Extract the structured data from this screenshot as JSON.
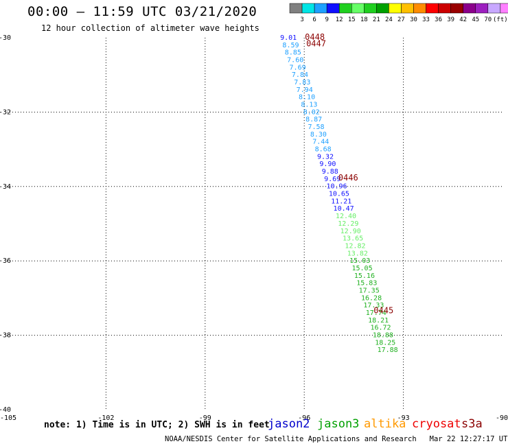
{
  "title": "00:00 – 11:59 UTC 03/21/2020",
  "subtitle": "12 hour collection of altimeter wave heights",
  "colorbar": {
    "colors": [
      "#808080",
      "#00e5e5",
      "#1ea0ff",
      "#1010ff",
      "#1fd01f",
      "#66ff66",
      "#1fd01f",
      "#00a000",
      "#ffff00",
      "#ffc000",
      "#ff8c00",
      "#ff0000",
      "#cc0000",
      "#990000",
      "#8b008b",
      "#9c1fbf",
      "#c8a8ff",
      "#ff80ff",
      "#000000"
    ],
    "labels": [
      "3",
      "6",
      "9",
      "12",
      "15",
      "18",
      "21",
      "24",
      "27",
      "30",
      "33",
      "36",
      "39",
      "42",
      "45",
      "70",
      "(ft)"
    ]
  },
  "note": "note: 1) Time is in UTC; 2) SWH is in feet",
  "satellites": [
    {
      "name": "jason2",
      "color": "#0000cc"
    },
    {
      "name": "jason3",
      "color": "#00a000"
    },
    {
      "name": "altika",
      "color": "#ff9900"
    },
    {
      "name": "cryosat",
      "color": "#ee0000"
    },
    {
      "name": "s3a",
      "color": "#8b0000"
    }
  ],
  "credit": "NOAA/NESDIS Center for Satellite Applications and Research",
  "timestamp": "Mar 22 12:27:17 UTC 2020",
  "chart_data": {
    "type": "scatter",
    "title": "00:00 – 11:59 UTC 03/21/2020",
    "subtitle": "12 hour collection of altimeter wave heights",
    "xlim": [
      -105,
      -90
    ],
    "ylim": [
      -40,
      -30
    ],
    "x_ticks": [
      "-105",
      "-102",
      "-99",
      "-96",
      "-93",
      "-90"
    ],
    "y_ticks": [
      "-30",
      "-32",
      "-34",
      "-36",
      "-38",
      "-40"
    ],
    "grid": true,
    "time_labels": [
      {
        "label": "0448",
        "lon": -95.98,
        "lat": -29.98
      },
      {
        "label": "0447",
        "lon": -95.94,
        "lat": -30.16
      },
      {
        "label": "0446",
        "lon": -94.97,
        "lat": -33.76
      },
      {
        "label": "0445",
        "lon": -93.9,
        "lat": -37.33
      }
    ],
    "points": [
      {
        "lon": -96.73,
        "lat": -29.98,
        "swh": "9.01"
      },
      {
        "lon": -96.66,
        "lat": -30.18,
        "swh": "8.59"
      },
      {
        "lon": -96.59,
        "lat": -30.38,
        "swh": "8.85"
      },
      {
        "lon": -96.52,
        "lat": -30.58,
        "swh": "7.60"
      },
      {
        "lon": -96.45,
        "lat": -30.78,
        "swh": "7.69"
      },
      {
        "lon": -96.38,
        "lat": -30.98,
        "swh": "7.84"
      },
      {
        "lon": -96.31,
        "lat": -31.18,
        "swh": "7.83"
      },
      {
        "lon": -96.24,
        "lat": -31.38,
        "swh": "7.94"
      },
      {
        "lon": -96.17,
        "lat": -31.58,
        "swh": "8.10"
      },
      {
        "lon": -96.1,
        "lat": -31.78,
        "swh": "8.13"
      },
      {
        "lon": -96.03,
        "lat": -31.98,
        "swh": "8.02"
      },
      {
        "lon": -95.96,
        "lat": -32.18,
        "swh": "8.87"
      },
      {
        "lon": -95.89,
        "lat": -32.38,
        "swh": "7.58"
      },
      {
        "lon": -95.82,
        "lat": -32.58,
        "swh": "8.30"
      },
      {
        "lon": -95.75,
        "lat": -32.78,
        "swh": "7.44"
      },
      {
        "lon": -95.68,
        "lat": -32.98,
        "swh": "8.68"
      },
      {
        "lon": -95.61,
        "lat": -33.18,
        "swh": "9.32"
      },
      {
        "lon": -95.54,
        "lat": -33.38,
        "swh": "9.90"
      },
      {
        "lon": -95.47,
        "lat": -33.58,
        "swh": "9.88"
      },
      {
        "lon": -95.4,
        "lat": -33.78,
        "swh": "9.69"
      },
      {
        "lon": -95.33,
        "lat": -33.98,
        "swh": "10.96"
      },
      {
        "lon": -95.26,
        "lat": -34.18,
        "swh": "10.65"
      },
      {
        "lon": -95.19,
        "lat": -34.38,
        "swh": "11.21"
      },
      {
        "lon": -95.12,
        "lat": -34.58,
        "swh": "10.47"
      },
      {
        "lon": -95.05,
        "lat": -34.78,
        "swh": "12.40"
      },
      {
        "lon": -94.98,
        "lat": -34.98,
        "swh": "12.29"
      },
      {
        "lon": -94.91,
        "lat": -35.18,
        "swh": "12.90"
      },
      {
        "lon": -94.84,
        "lat": -35.38,
        "swh": "13.65"
      },
      {
        "lon": -94.77,
        "lat": -35.58,
        "swh": "12.82"
      },
      {
        "lon": -94.7,
        "lat": -35.78,
        "swh": "13.82"
      },
      {
        "lon": -94.63,
        "lat": -35.98,
        "swh": "15.03"
      },
      {
        "lon": -94.56,
        "lat": -36.18,
        "swh": "15.05"
      },
      {
        "lon": -94.49,
        "lat": -36.38,
        "swh": "15.16"
      },
      {
        "lon": -94.42,
        "lat": -36.58,
        "swh": "15.83"
      },
      {
        "lon": -94.35,
        "lat": -36.78,
        "swh": "17.35"
      },
      {
        "lon": -94.28,
        "lat": -36.98,
        "swh": "16.28"
      },
      {
        "lon": -94.21,
        "lat": -37.18,
        "swh": "17.33"
      },
      {
        "lon": -94.14,
        "lat": -37.38,
        "swh": "17.74"
      },
      {
        "lon": -94.07,
        "lat": -37.58,
        "swh": "18.21"
      },
      {
        "lon": -94.0,
        "lat": -37.78,
        "swh": "16.72"
      },
      {
        "lon": -93.93,
        "lat": -37.98,
        "swh": "18.88"
      },
      {
        "lon": -93.86,
        "lat": -38.18,
        "swh": "18.25"
      },
      {
        "lon": -93.79,
        "lat": -38.38,
        "swh": "17.88"
      }
    ]
  }
}
